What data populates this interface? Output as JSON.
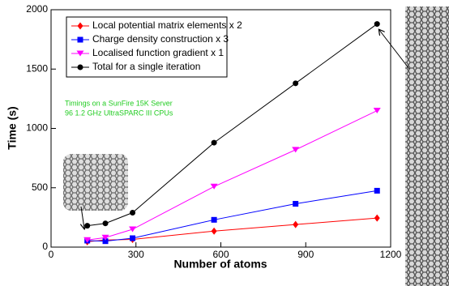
{
  "chart_data": {
    "type": "line",
    "x_label": "Number of atoms",
    "y_label": "Time (s)",
    "annotation": [
      "Timings on a SunFire 15K Server",
      "96 1.2 GHz UltraSPARC III CPUs"
    ],
    "x": [
      128,
      192,
      288,
      576,
      864,
      1152
    ],
    "series": [
      {
        "name": "Local potential matrix elements x 2",
        "color": "#ff0000",
        "marker": "diamond",
        "values": [
          45,
          60,
          65,
          135,
          190,
          245
        ]
      },
      {
        "name": "Charge density construction x 3",
        "color": "#0000ff",
        "marker": "square",
        "values": [
          55,
          50,
          75,
          230,
          365,
          475
        ]
      },
      {
        "name": "Localised function gradient x 1",
        "color": "#ff00ff",
        "marker": "triangle-down",
        "values": [
          60,
          80,
          150,
          510,
          820,
          1150
        ]
      },
      {
        "name": "Total for a single iteration",
        "color": "#000000",
        "marker": "circle",
        "values": [
          180,
          200,
          290,
          880,
          1380,
          1880
        ]
      }
    ],
    "xlim": [
      0,
      1200
    ],
    "xticks": [
      0,
      300,
      600,
      900,
      1200
    ],
    "ylim": [
      0,
      2000
    ],
    "yticks": [
      0,
      500,
      1000,
      1500,
      2000
    ],
    "legend": "upper-left"
  }
}
